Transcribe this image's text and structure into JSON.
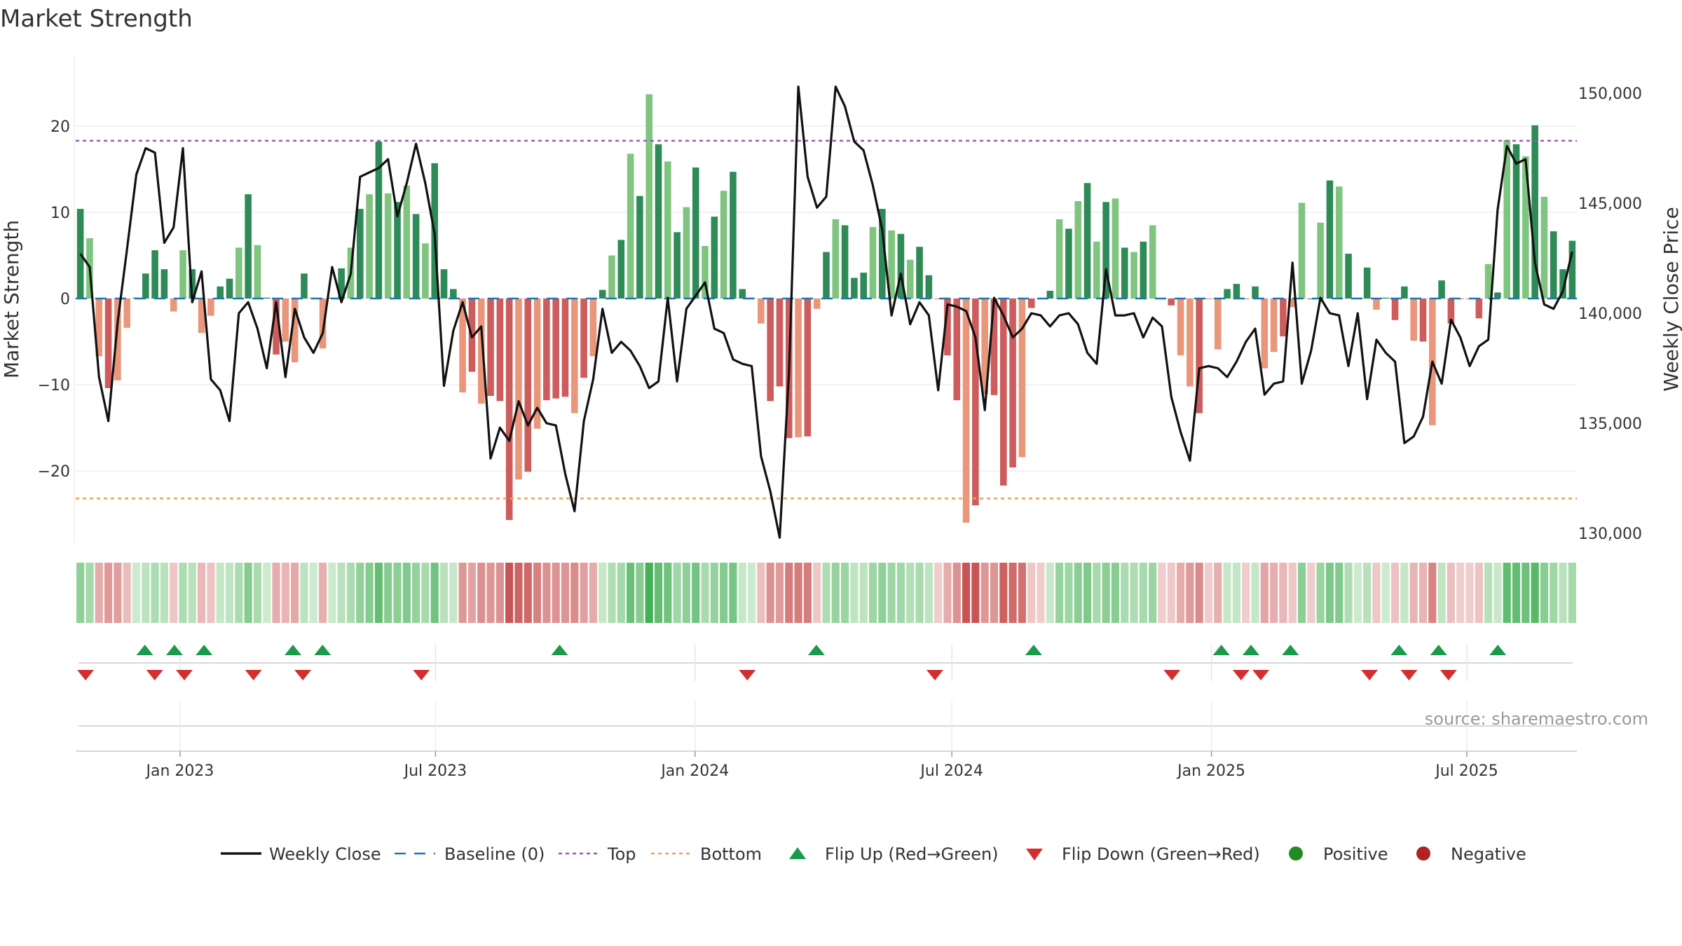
{
  "chart_data": {
    "type": "bar",
    "title": "Market Strength",
    "ylabel_left": "Market Strength",
    "ylabel_right": "Weekly Close Price",
    "source": "source: sharemaestro.com",
    "left_ylim": [
      -28,
      28
    ],
    "left_ticks": [
      20,
      10,
      0,
      -10,
      -20
    ],
    "left_tick_labels": [
      "20",
      "10",
      "0",
      "−10",
      "−20"
    ],
    "right_ylim": [
      129000,
      151500
    ],
    "right_ticks": [
      150000,
      145000,
      140000,
      135000,
      130000
    ],
    "right_tick_labels": [
      "150,000",
      "145,000",
      "140,000",
      "135,000",
      "130,000"
    ],
    "top_line": 18.3,
    "bottom_line": -23.2,
    "date_range": [
      "2022-10-19",
      "2025-09-17"
    ],
    "xtick_dates": [
      "2023-01-01",
      "2023-07-01",
      "2024-01-01",
      "2024-07-01",
      "2025-01-01",
      "2025-07-01"
    ],
    "xtick_labels": [
      "Jan 2023",
      "Jul 2023",
      "Jan 2024",
      "Jul 2024",
      "Jan 2025",
      "Jul 2025"
    ],
    "strength": [
      10.4,
      7.0,
      -6.7,
      -10.4,
      -9.5,
      -3.4,
      0.1,
      2.9,
      5.6,
      3.4,
      -1.5,
      5.6,
      3.4,
      -4.0,
      -2.0,
      1.4,
      2.3,
      5.9,
      12.1,
      6.2,
      0.1,
      -6.5,
      -5.0,
      -7.4,
      2.9,
      0.1,
      -5.8,
      0.1,
      3.5,
      5.9,
      10.4,
      12.1,
      18.2,
      12.2,
      11.2,
      13.1,
      9.8,
      6.4,
      15.7,
      3.4,
      1.1,
      -10.9,
      -8.5,
      -12.2,
      -11.3,
      -11.9,
      -25.7,
      -21.0,
      -20.1,
      -15.1,
      -11.8,
      -11.6,
      -11.4,
      -13.3,
      -9.2,
      -6.7,
      1.0,
      5.0,
      6.8,
      16.8,
      11.9,
      23.7,
      17.9,
      15.9,
      7.7,
      10.6,
      15.2,
      6.1,
      9.5,
      12.5,
      14.7,
      1.1,
      0.1,
      -2.9,
      -11.9,
      -10.2,
      -16.2,
      -16.1,
      -16.0,
      -1.2,
      5.4,
      9.2,
      8.5,
      2.4,
      3.0,
      8.3,
      10.4,
      7.9,
      7.5,
      4.5,
      6.0,
      2.7,
      -0.1,
      -6.6,
      -11.8,
      -26.0,
      -24.0,
      -11.1,
      -11.2,
      -21.7,
      -19.6,
      -18.4,
      -1.1,
      -0.1,
      0.9,
      9.2,
      8.1,
      11.3,
      13.4,
      6.6,
      11.2,
      11.6,
      5.9,
      5.4,
      6.6,
      8.5,
      -0.1,
      -0.8,
      -6.6,
      -10.2,
      -13.3,
      -0.1,
      -5.9,
      1.1,
      1.7,
      -0.1,
      1.4,
      -8.1,
      -6.2,
      -4.4,
      -1.0,
      11.1,
      -0.1,
      8.8,
      13.7,
      13.0,
      5.2,
      0.1,
      3.6,
      -1.3,
      0.1,
      -2.5,
      1.4,
      -4.9,
      -5.0,
      -14.7,
      2.1,
      -2.9,
      -0.1,
      -0.1,
      -2.3,
      4.0,
      0.7,
      18.4,
      17.9,
      16.5,
      20.1,
      11.8,
      7.8,
      3.4,
      6.7
    ],
    "weekly_close": [
      142700,
      142100,
      137100,
      135100,
      139600,
      142900,
      146300,
      147500,
      147300,
      143200,
      143900,
      147500,
      140500,
      141900,
      137000,
      136500,
      135100,
      140000,
      140500,
      139300,
      137500,
      140500,
      137100,
      140200,
      138900,
      138200,
      139100,
      142100,
      140500,
      141800,
      146200,
      146400,
      146600,
      147000,
      144400,
      145900,
      147700,
      145900,
      143600,
      136700,
      139200,
      140500,
      138900,
      139400,
      133400,
      134800,
      134200,
      136000,
      134900,
      135700,
      135000,
      134900,
      132700,
      131000,
      135100,
      137000,
      140200,
      138200,
      138700,
      138300,
      137600,
      136600,
      136900,
      140700,
      136900,
      140200,
      140800,
      141400,
      139300,
      139100,
      137900,
      137700,
      137600,
      133500,
      131900,
      129800,
      137300,
      150300,
      146200,
      144800,
      145300,
      150300,
      149400,
      147800,
      147400,
      145800,
      143800,
      139900,
      141800,
      139500,
      140500,
      139900,
      136500,
      140400,
      140300,
      140100,
      138900,
      135600,
      140700,
      139900,
      138900,
      139300,
      140000,
      139900,
      139400,
      139900,
      140000,
      139500,
      138200,
      137700,
      142000,
      139900,
      139900,
      140000,
      138900,
      139800,
      139400,
      136200,
      134600,
      133300,
      137500,
      137600,
      137500,
      137100,
      137800,
      138700,
      139300,
      136300,
      136800,
      136900,
      142300,
      136800,
      138300,
      140700,
      140000,
      139900,
      137600,
      140000,
      136100,
      138800,
      138200,
      137800,
      134100,
      134400,
      135300,
      137800,
      136800,
      139700,
      138900,
      137600,
      138500,
      138800,
      144700,
      147600,
      146800,
      147000,
      142300,
      140400,
      140200,
      141000,
      142800
    ],
    "flip_up_dates": [
      "2022-12-07",
      "2022-12-28",
      "2023-01-18",
      "2023-03-22",
      "2023-04-12",
      "2023-09-27",
      "2024-03-27",
      "2024-08-28",
      "2025-01-08",
      "2025-01-29",
      "2025-02-26",
      "2025-05-14",
      "2025-06-11",
      "2025-07-23"
    ],
    "flip_down_dates": [
      "2022-10-26",
      "2022-12-14",
      "2023-01-04",
      "2023-02-22",
      "2023-03-29",
      "2023-06-21",
      "2024-02-07",
      "2024-06-19",
      "2024-12-04",
      "2025-01-22",
      "2025-02-05",
      "2025-04-23",
      "2025-05-21",
      "2025-06-18"
    ],
    "legend": [
      "Weekly Close",
      "Baseline (0)",
      "Top",
      "Bottom",
      "Flip Up (Red→Green)",
      "Flip Down (Green→Red)",
      "Positive",
      "Negative"
    ],
    "legend_placement": "bottom-center",
    "colors": {
      "strong_green": "#2e8b57",
      "light_green": "#7fc47f",
      "strong_red": "#cd5c5c",
      "light_red": "#e9967a",
      "top_line": "#9b59b6",
      "bottom_line": "#f0a050",
      "baseline": "#1f77b4",
      "flip_up": "#1a9a4a",
      "flip_down": "#d32f2f",
      "positive_dot": "#228b22",
      "negative_dot": "#b22222",
      "close_line": "#111111"
    }
  }
}
